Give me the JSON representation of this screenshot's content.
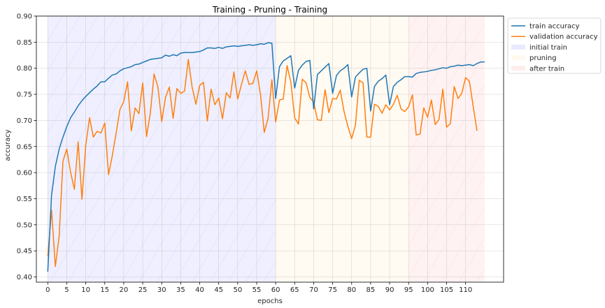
{
  "chart_data": {
    "type": "line",
    "title": "Training - Pruning - Training",
    "xlabel": "epochs",
    "ylabel": "accuracy",
    "xlim": [
      -3,
      120
    ],
    "ylim": [
      0.39,
      0.9
    ],
    "xticks": [
      0,
      5,
      10,
      15,
      20,
      25,
      30,
      35,
      40,
      45,
      50,
      55,
      60,
      65,
      70,
      75,
      80,
      85,
      90,
      95,
      100,
      105,
      110
    ],
    "yticks": [
      0.4,
      0.45,
      0.5,
      0.55,
      0.6,
      0.65,
      0.7,
      0.75,
      0.8,
      0.85,
      0.9
    ],
    "grid": true,
    "legend_position": "outside-top-right",
    "regions": [
      {
        "name": "initial train",
        "x0": 0,
        "x1": 60,
        "color": "#4a4aff",
        "hatch": true
      },
      {
        "name": "pruning",
        "x0": 60,
        "x1": 95,
        "color": "#ffc870",
        "hatch": false
      },
      {
        "name": "after train",
        "x0": 95,
        "x1": 115,
        "color": "#ff6a6a",
        "hatch": true
      }
    ],
    "series": [
      {
        "name": "train accuracy",
        "color": "#1f77b4",
        "values": [
          0.41,
          0.557,
          0.612,
          0.645,
          0.668,
          0.688,
          0.705,
          0.716,
          0.728,
          0.738,
          0.746,
          0.753,
          0.76,
          0.766,
          0.774,
          0.774,
          0.781,
          0.787,
          0.789,
          0.795,
          0.799,
          0.801,
          0.803,
          0.807,
          0.808,
          0.811,
          0.814,
          0.817,
          0.818,
          0.819,
          0.82,
          0.825,
          0.823,
          0.826,
          0.824,
          0.829,
          0.83,
          0.83,
          0.83,
          0.831,
          0.832,
          0.835,
          0.839,
          0.839,
          0.838,
          0.84,
          0.838,
          0.841,
          0.842,
          0.843,
          0.842,
          0.843,
          0.844,
          0.845,
          0.844,
          0.845,
          0.847,
          0.846,
          0.849,
          0.848,
          0.742,
          0.803,
          0.814,
          0.819,
          0.824,
          0.762,
          0.796,
          0.806,
          0.813,
          0.815,
          0.722,
          0.788,
          0.795,
          0.802,
          0.809,
          0.752,
          0.786,
          0.795,
          0.8,
          0.807,
          0.745,
          0.783,
          0.791,
          0.798,
          0.8,
          0.718,
          0.765,
          0.775,
          0.78,
          0.787,
          0.73,
          0.765,
          0.773,
          0.778,
          0.784,
          0.784,
          0.783,
          0.79,
          0.792,
          0.793,
          0.794,
          0.796,
          0.797,
          0.799,
          0.801,
          0.8,
          0.803,
          0.804,
          0.806,
          0.805,
          0.806,
          0.807,
          0.805,
          0.809,
          0.812,
          0.812
        ]
      },
      {
        "name": "validation accuracy",
        "color": "#ff7f0e",
        "values": [
          0.44,
          0.528,
          0.42,
          0.478,
          0.622,
          0.645,
          0.601,
          0.568,
          0.659,
          0.549,
          0.652,
          0.705,
          0.668,
          0.679,
          0.676,
          0.695,
          0.596,
          0.633,
          0.676,
          0.721,
          0.736,
          0.774,
          0.68,
          0.724,
          0.713,
          0.772,
          0.669,
          0.714,
          0.789,
          0.764,
          0.698,
          0.744,
          0.764,
          0.704,
          0.761,
          0.752,
          0.756,
          0.817,
          0.764,
          0.731,
          0.767,
          0.773,
          0.699,
          0.76,
          0.73,
          0.743,
          0.703,
          0.753,
          0.743,
          0.793,
          0.741,
          0.769,
          0.795,
          0.769,
          0.771,
          0.795,
          0.75,
          0.677,
          0.704,
          0.778,
          0.697,
          0.739,
          0.741,
          0.805,
          0.773,
          0.705,
          0.693,
          0.779,
          0.772,
          0.744,
          0.735,
          0.701,
          0.7,
          0.759,
          0.715,
          0.742,
          0.741,
          0.758,
          0.717,
          0.689,
          0.665,
          0.691,
          0.777,
          0.772,
          0.668,
          0.668,
          0.731,
          0.727,
          0.714,
          0.73,
          0.72,
          0.731,
          0.748,
          0.722,
          0.717,
          0.726,
          0.749,
          0.672,
          0.674,
          0.724,
          0.706,
          0.739,
          0.692,
          0.702,
          0.76,
          0.687,
          0.694,
          0.765,
          0.742,
          0.752,
          0.782,
          0.775,
          0.727,
          0.68
        ]
      }
    ]
  }
}
